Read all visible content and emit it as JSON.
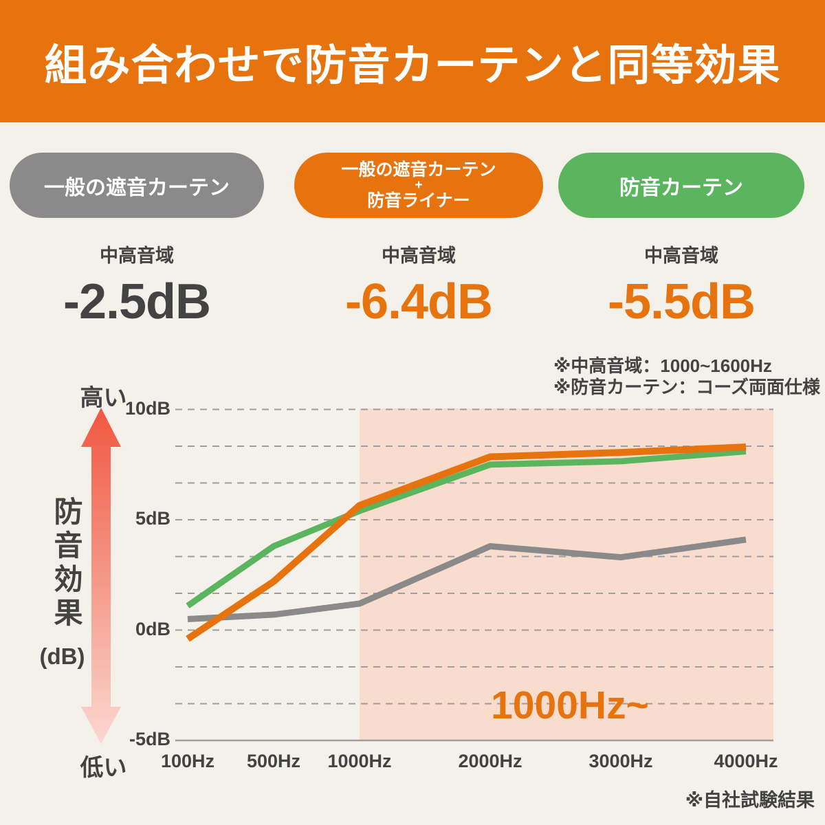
{
  "header": {
    "title": "組み合わせで防音カーテンと同等効果"
  },
  "colors": {
    "accent_orange": "#E7730F",
    "badge_gray": "#8A8A8A",
    "badge_green": "#5BB55F",
    "background": "#F3F1E9",
    "highlight_pink": "#F8DCCE",
    "dark_text": "#434343"
  },
  "badges": {
    "general": {
      "label": "一般の遮音カーテン"
    },
    "combo": {
      "line1": "一般の遮音カーテン",
      "plus": "+",
      "line2": "防音ライナー"
    },
    "soundproof": {
      "label": "防音カーテン"
    }
  },
  "stats": [
    {
      "range": "中高音域",
      "value": "-2.5dB"
    },
    {
      "range": "中高音域",
      "value": "-6.4dB"
    },
    {
      "range": "中高音域",
      "value": "-5.5dB"
    }
  ],
  "notes": {
    "line1": "※中高音域：1000~1600Hz",
    "line2": "※防音カーテン：コーズ両面仕様"
  },
  "chart_data": {
    "type": "line",
    "x_categories": [
      "100Hz",
      "500Hz",
      "1000Hz",
      "2000Hz",
      "3000Hz",
      "4000Hz"
    ],
    "y_ticks": [
      {
        "label": "10dB",
        "value": 10
      },
      {
        "label": "5dB",
        "value": 5
      },
      {
        "label": "0dB",
        "value": 0
      },
      {
        "label": "-5dB",
        "value": -5
      }
    ],
    "ylim": [
      -5,
      10
    ],
    "grid": "dashed",
    "ylabel": "防音効果",
    "ylabel_unit": "(dB)",
    "y_axis_high": "高い",
    "y_axis_low": "低い",
    "series": [
      {
        "name": "一般の遮音カーテン",
        "color": "#8A8A8A",
        "stroke_width": 9,
        "values": [
          0.5,
          0.7,
          1.2,
          3.8,
          3.3,
          4.1
        ]
      },
      {
        "name": "防音カーテン",
        "color": "#5BB55F",
        "stroke_width": 9,
        "values": [
          1.1,
          3.8,
          5.4,
          7.5,
          7.65,
          8.1
        ]
      },
      {
        "name": "一般の遮音カーテン+防音ライナー",
        "color": "#E7730F",
        "stroke_width": 10,
        "values": [
          -0.4,
          2.2,
          5.65,
          7.85,
          8.05,
          8.3
        ]
      }
    ],
    "highlight": {
      "from_category": "1000Hz",
      "label": "1000Hz~",
      "color": "#F8DCCE"
    },
    "footnote": "※自社試験結果"
  }
}
